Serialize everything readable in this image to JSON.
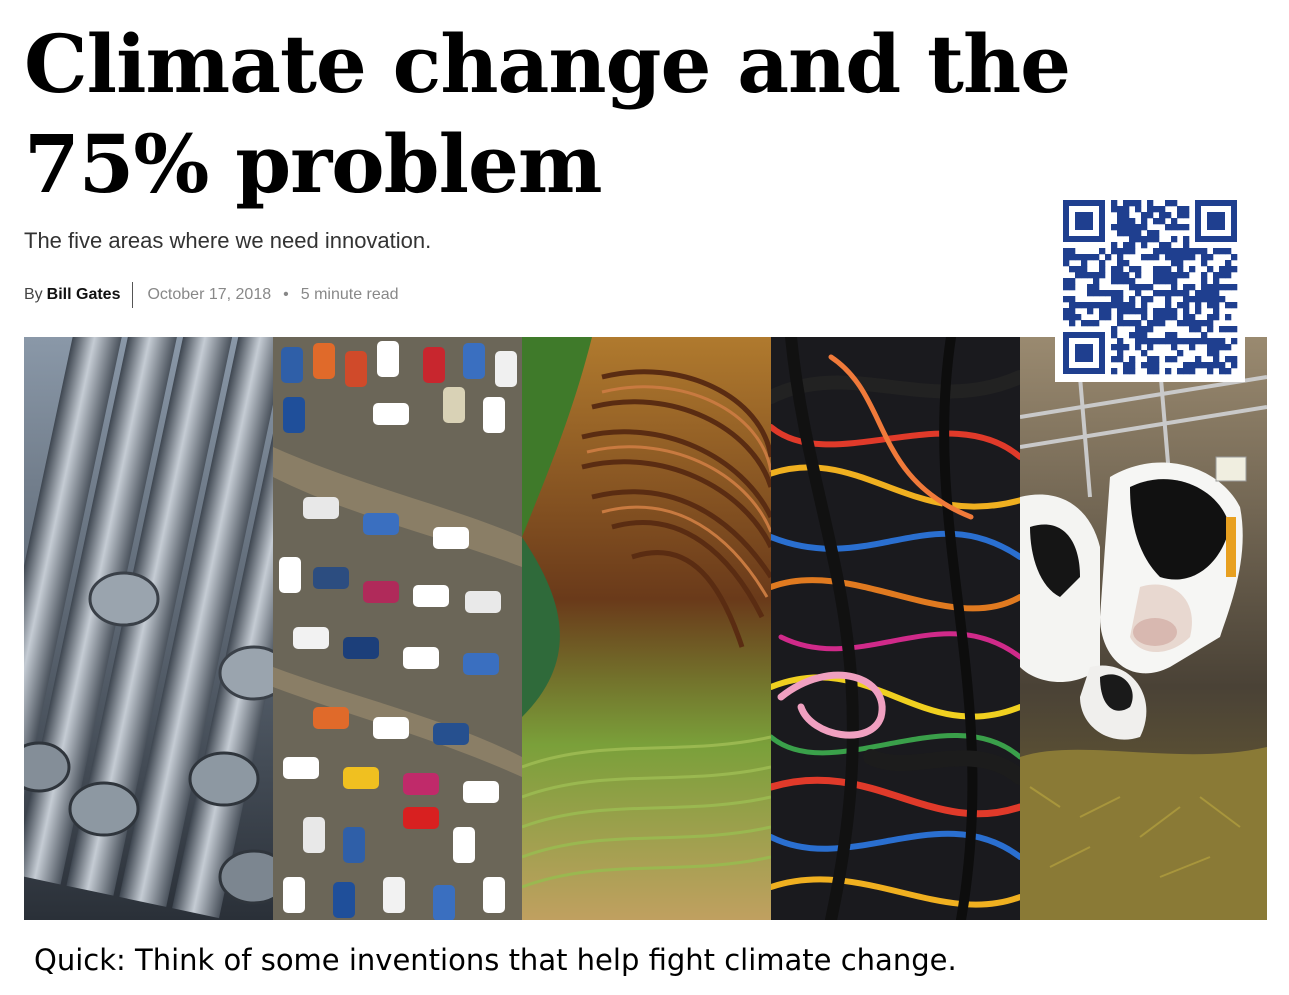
{
  "article": {
    "headline": "Climate change and the 75% problem",
    "subtitle": "The five areas where we need innovation.",
    "byline": {
      "by": "By",
      "author": "Bill Gates",
      "date": "October 17, 2018",
      "separator": "•",
      "read_time": "5 minute read"
    }
  },
  "collage": {
    "panels": [
      {
        "subject": "steel-rods"
      },
      {
        "subject": "parked-cars-aerial"
      },
      {
        "subject": "terraced-farmland-aerial"
      },
      {
        "subject": "electrical-cables"
      },
      {
        "subject": "dairy-cows"
      }
    ]
  },
  "qr_code": {
    "icon": "qr-code-icon",
    "color": "#1f3f8f"
  },
  "caption": "Quick: Think of some inventions that help fight climate change."
}
